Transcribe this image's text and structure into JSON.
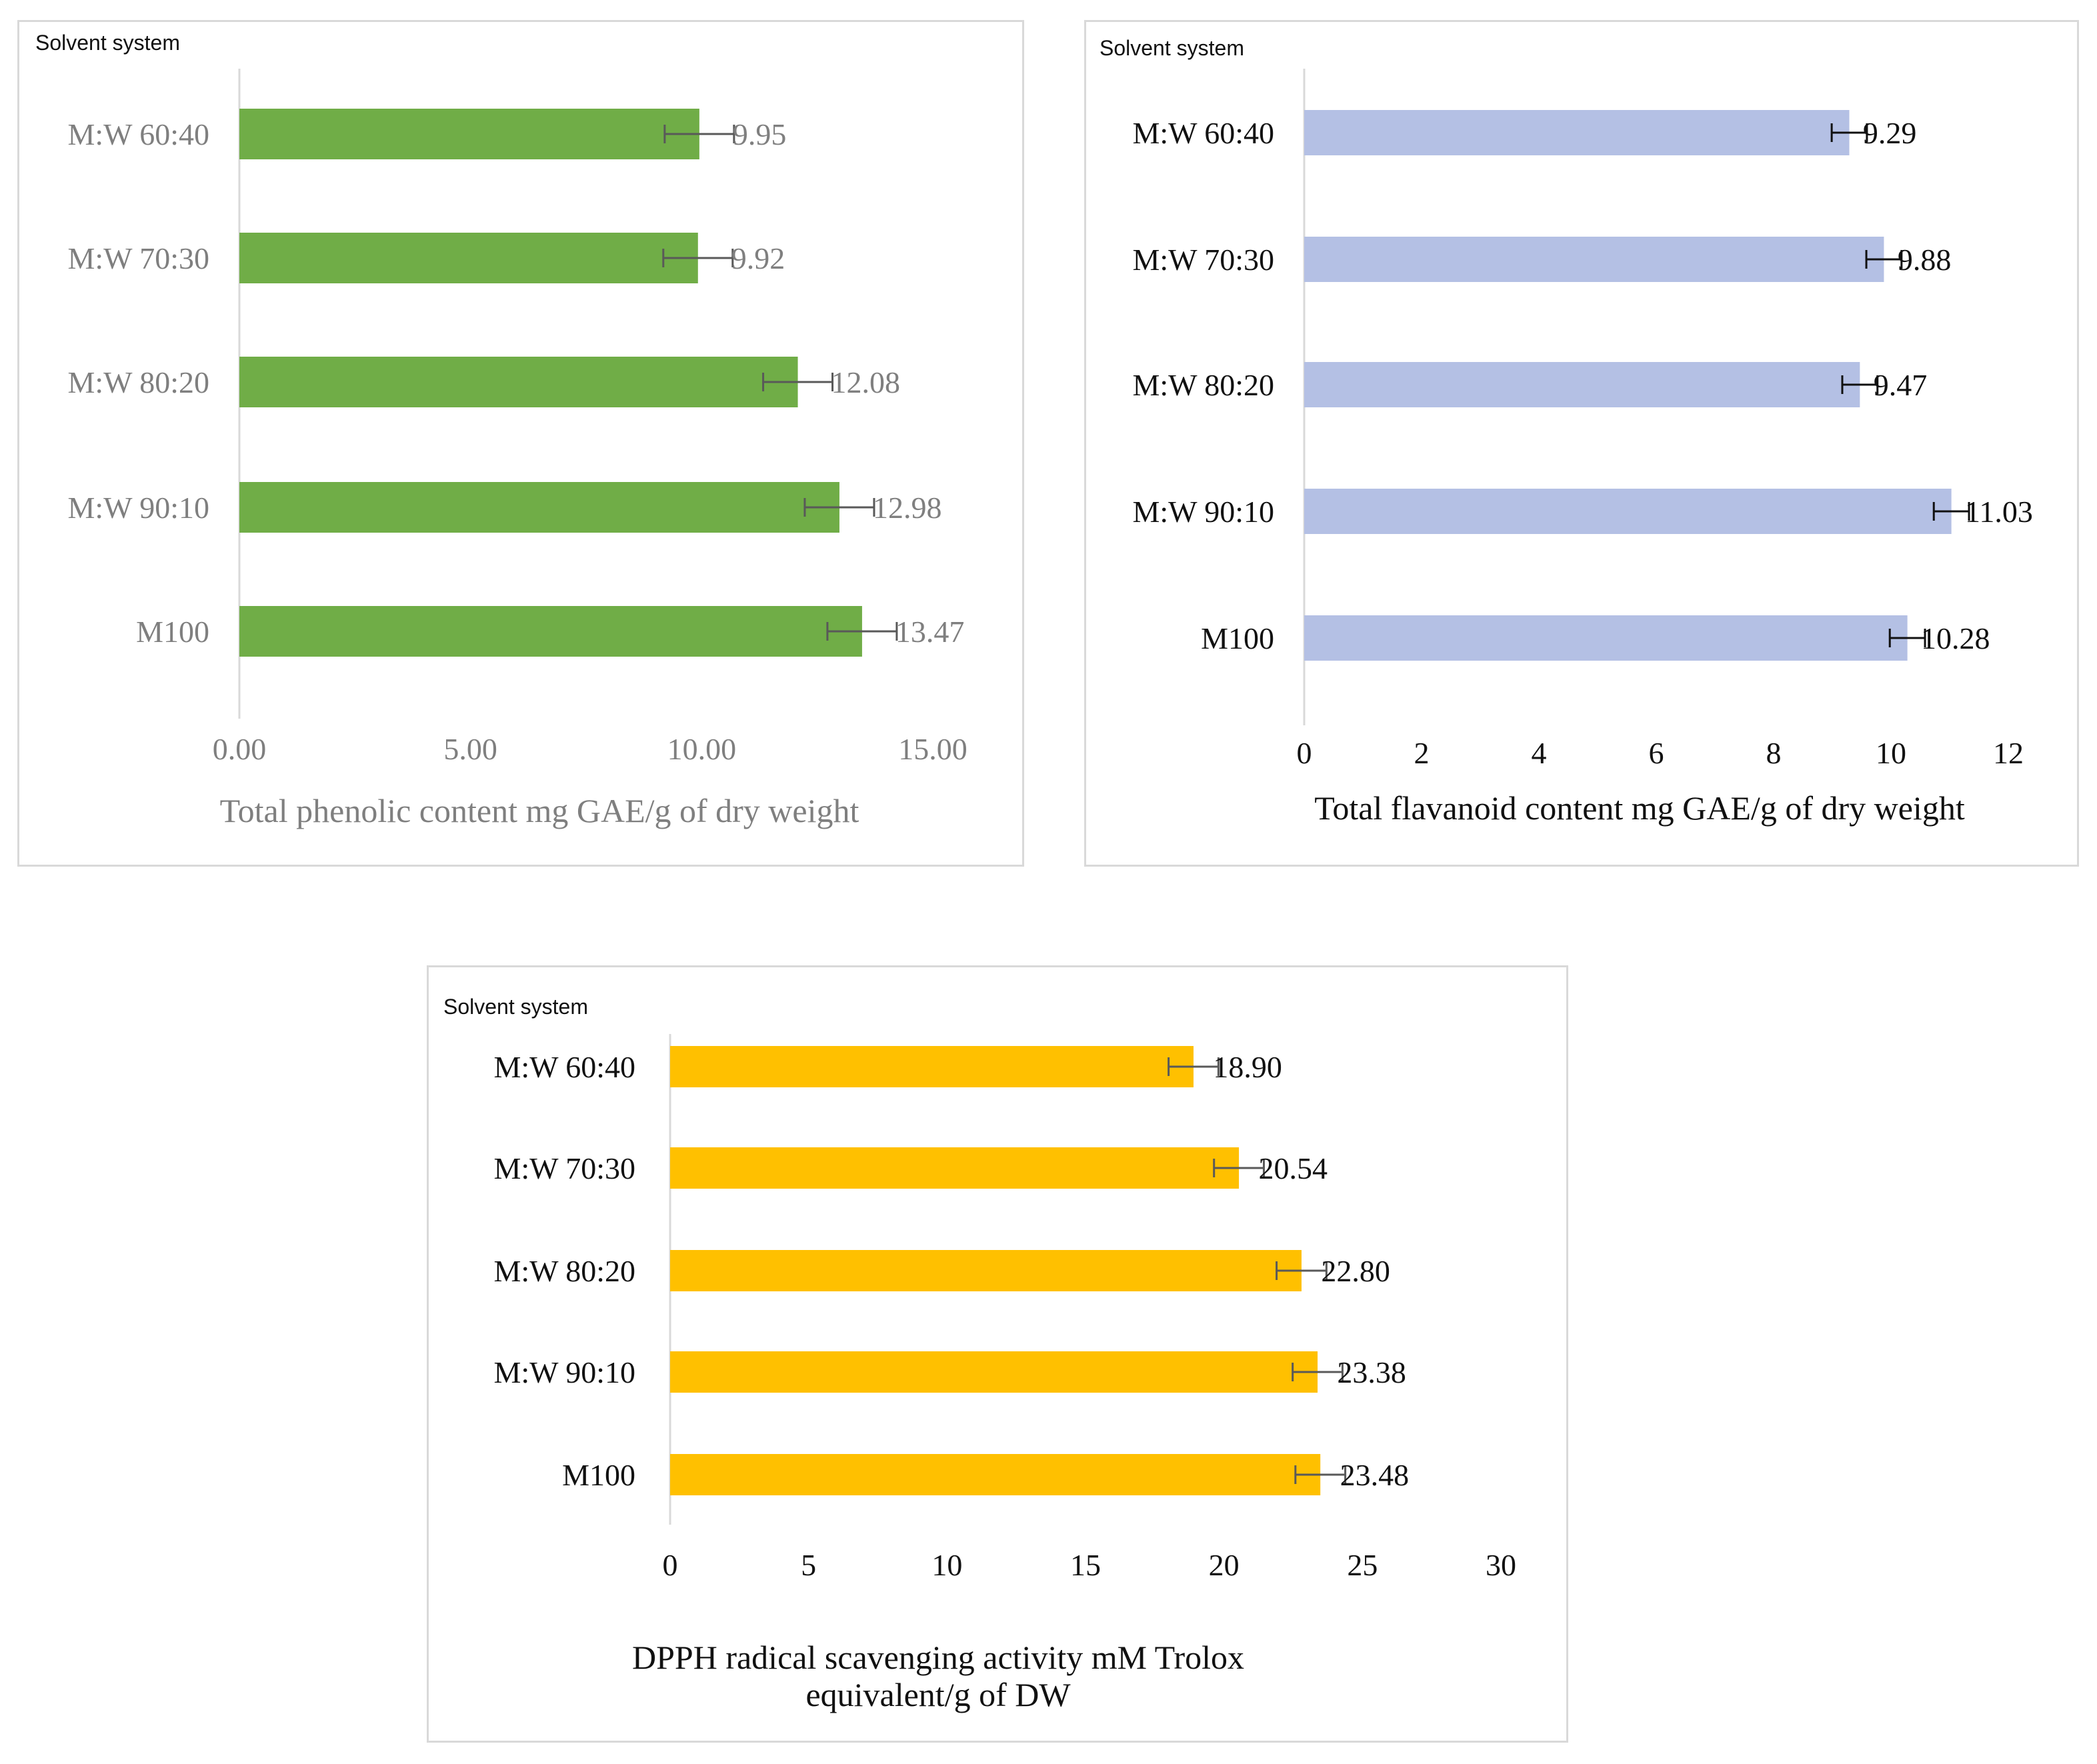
{
  "chart_data": [
    {
      "type": "bar",
      "orientation": "horizontal",
      "series_title": "Solvent system",
      "categories": [
        "M:W 60:40",
        "M:W 70:30",
        "M:W 80:20",
        "M:W 90:10",
        "M100"
      ],
      "values": [
        9.95,
        9.92,
        12.08,
        12.98,
        13.47
      ],
      "value_labels": [
        "9.95",
        "9.92",
        "12.08",
        "12.98",
        "13.47"
      ],
      "errors": [
        0.75,
        0.75,
        0.75,
        0.75,
        0.75
      ],
      "xlim": [
        0,
        15
      ],
      "ticks": [
        "0.00",
        "5.00",
        "10.00",
        "15.00"
      ],
      "tick_values": [
        0,
        5,
        10,
        15
      ],
      "xlabel": [
        "Total phenolic content mg GAE/g of dry weight"
      ],
      "bar_color": "#70ad47",
      "text_color": "#7f7f7f"
    },
    {
      "type": "bar",
      "orientation": "horizontal",
      "series_title": "Solvent system",
      "categories": [
        "M:W 60:40",
        "M:W 70:30",
        "M:W 80:20",
        "M:W 90:10",
        "M100"
      ],
      "values": [
        9.29,
        9.88,
        9.47,
        11.03,
        10.28
      ],
      "value_labels": [
        "9.29",
        "9.88",
        "9.47",
        "11.03",
        "10.28"
      ],
      "errors": [
        0.3,
        0.3,
        0.3,
        0.3,
        0.3
      ],
      "xlim": [
        0,
        12
      ],
      "ticks": [
        "0",
        "2",
        "4",
        "6",
        "8",
        "10",
        "12"
      ],
      "tick_values": [
        0,
        2,
        4,
        6,
        8,
        10,
        12
      ],
      "xlabel": [
        "Total flavanoid content mg GAE/g of dry weight"
      ],
      "bar_color": "#b4c0e4",
      "text_color": "#111111"
    },
    {
      "type": "bar",
      "orientation": "horizontal",
      "series_title": "Solvent system",
      "categories": [
        "M:W 60:40",
        "M:W 70:30",
        "M:W 80:20",
        "M:W 90:10",
        "M100"
      ],
      "values": [
        18.9,
        20.54,
        22.8,
        23.38,
        23.48
      ],
      "value_labels": [
        "18.90",
        "20.54",
        "22.80",
        "23.38",
        "23.48"
      ],
      "errors": [
        0.9,
        0.9,
        0.9,
        0.9,
        0.9
      ],
      "xlim": [
        0,
        30
      ],
      "ticks": [
        "0",
        "5",
        "10",
        "15",
        "20",
        "25",
        "30"
      ],
      "tick_values": [
        0,
        5,
        10,
        15,
        20,
        25,
        30
      ],
      "xlabel": [
        "DPPH radical scavenging activity mM Trolox",
        "equivalent/g of DW"
      ],
      "bar_color": "#ffc000",
      "text_color": "#111111"
    }
  ]
}
